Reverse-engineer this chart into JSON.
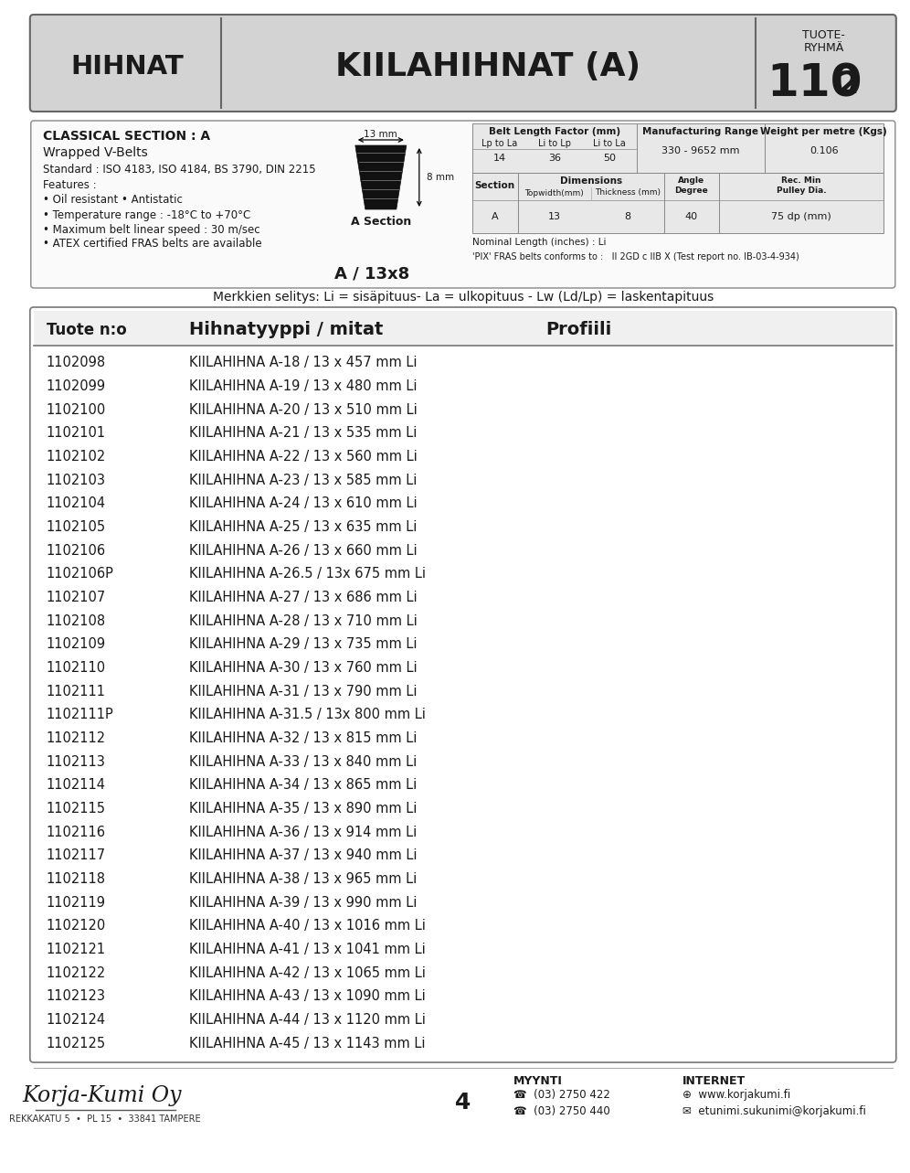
{
  "page_bg": "#ffffff",
  "header_bg": "#d3d3d3",
  "header_title_left": "HIHNAT",
  "header_title_center": "KIILAHIHNAT (A)",
  "header_title_right_line1": "TUOTE-",
  "header_title_right_line2": "RYHMÄ",
  "header_title_right_number": "110",
  "header_title_right_number2": "2",
  "classical_section_title": "CLASSICAL SECTION : A",
  "wrapped_vbelts": "Wrapped V-Belts",
  "standard_text": "Standard : ISO 4183, ISO 4184, BS 3790, DIN 2215",
  "features_text": "Features :",
  "feature1": "• Oil resistant • Antistatic",
  "feature2": "• Temperature range : -18°C to +70°C",
  "feature3": "• Maximum belt linear speed : 30 m/sec",
  "feature4": "• ATEX certified FRAS belts are available",
  "a_section_label": "A Section",
  "belt_code": "A / 13x8",
  "dim_13mm": "13 mm",
  "dim_8mm": "8 mm",
  "belt_length_factor_header": "Belt Length Factor (mm)",
  "blf_col1": "Lp to La",
  "blf_col2": "Li to Lp",
  "blf_col3": "Li to La",
  "blf_val1": "14",
  "blf_val2": "36",
  "blf_val3": "50",
  "mfg_range_header": "Manufacturing Range",
  "mfg_range_val": "330 - 9652 mm",
  "weight_header": "Weight per metre (Kgs)",
  "weight_val": "0.106",
  "section_col": "Section",
  "dim_col": "Dimensions",
  "topwidth_col": "Topwidth(mm)",
  "thickness_col": "Thickness (mm)",
  "angle_col": "Angle\nDegree",
  "recmin_col": "Rec. Min\nPulley Dia.",
  "sec_a_val": "A",
  "topwidth_val": "13",
  "thickness_val": "8",
  "angle_val": "40",
  "recmin_val": "75 dp (mm)",
  "nominal_length_text": "Nominal Length (inches) : Li",
  "pix_fras_text": "'PIX' FRAS belts conforms to :   II 2GD c IIB X (Test report no. IB-03-4-934)",
  "merkkien_text": "Merkkien selitys: Li = sisäpituus- La = ulkopituus - Lw (Ld/Lp) = laskentapituus",
  "table_header_col1": "Tuote n:o",
  "table_header_col2": "Hihnatyyppi / mitat",
  "table_header_col3": "Profiili",
  "table_rows": [
    [
      "1102098",
      "KIILAHIHNA A-18 / 13 x 457 mm Li"
    ],
    [
      "1102099",
      "KIILAHIHNA A-19 / 13 x 480 mm Li"
    ],
    [
      "1102100",
      "KIILAHIHNA A-20 / 13 x 510 mm Li"
    ],
    [
      "1102101",
      "KIILAHIHNA A-21 / 13 x 535 mm Li"
    ],
    [
      "1102102",
      "KIILAHIHNA A-22 / 13 x 560 mm Li"
    ],
    [
      "1102103",
      "KIILAHIHNA A-23 / 13 x 585 mm Li"
    ],
    [
      "1102104",
      "KIILAHIHNA A-24 / 13 x 610 mm Li"
    ],
    [
      "1102105",
      "KIILAHIHNA A-25 / 13 x 635 mm Li"
    ],
    [
      "1102106",
      "KIILAHIHNA A-26 / 13 x 660 mm Li"
    ],
    [
      "1102106P",
      "KIILAHIHNA A-26.5 / 13x 675 mm Li"
    ],
    [
      "1102107",
      "KIILAHIHNA A-27 / 13 x 686 mm Li"
    ],
    [
      "1102108",
      "KIILAHIHNA A-28 / 13 x 710 mm Li"
    ],
    [
      "1102109",
      "KIILAHIHNA A-29 / 13 x 735 mm Li"
    ],
    [
      "1102110",
      "KIILAHIHNA A-30 / 13 x 760 mm Li"
    ],
    [
      "1102111",
      "KIILAHIHNA A-31 / 13 x 790 mm Li"
    ],
    [
      "1102111P",
      "KIILAHIHNA A-31.5 / 13x 800 mm Li"
    ],
    [
      "1102112",
      "KIILAHIHNA A-32 / 13 x 815 mm Li"
    ],
    [
      "1102113",
      "KIILAHIHNA A-33 / 13 x 840 mm Li"
    ],
    [
      "1102114",
      "KIILAHIHNA A-34 / 13 x 865 mm Li"
    ],
    [
      "1102115",
      "KIILAHIHNA A-35 / 13 x 890 mm Li"
    ],
    [
      "1102116",
      "KIILAHIHNA A-36 / 13 x 914 mm Li"
    ],
    [
      "1102117",
      "KIILAHIHNA A-37 / 13 x 940 mm Li"
    ],
    [
      "1102118",
      "KIILAHIHNA A-38 / 13 x 965 mm Li"
    ],
    [
      "1102119",
      "KIILAHIHNA A-39 / 13 x 990 mm Li"
    ],
    [
      "1102120",
      "KIILAHIHNA A-40 / 13 x 1016 mm Li"
    ],
    [
      "1102121",
      "KIILAHIHNA A-41 / 13 x 1041 mm Li"
    ],
    [
      "1102122",
      "KIILAHIHNA A-42 / 13 x 1065 mm Li"
    ],
    [
      "1102123",
      "KIILAHIHNA A-43 / 13 x 1090 mm Li"
    ],
    [
      "1102124",
      "KIILAHIHNA A-44 / 13 x 1120 mm Li"
    ],
    [
      "1102125",
      "KIILAHIHNA A-45 / 13 x 1143 mm Li"
    ]
  ],
  "footer_logo_text": "Korja-Kumi Oy",
  "footer_page_num": "4",
  "footer_address": "REKKAKATU 5  •  PL 15  •  33841 TAMPERE",
  "footer_myynti": "MYYNTI",
  "footer_phone1": "(03) 2750 422",
  "footer_phone2": "(03) 2750 440",
  "footer_internet": "INTERNET",
  "footer_web": "www.korjakumi.fi",
  "footer_email": "etunimi.sukunimi@korjakumi.fi"
}
